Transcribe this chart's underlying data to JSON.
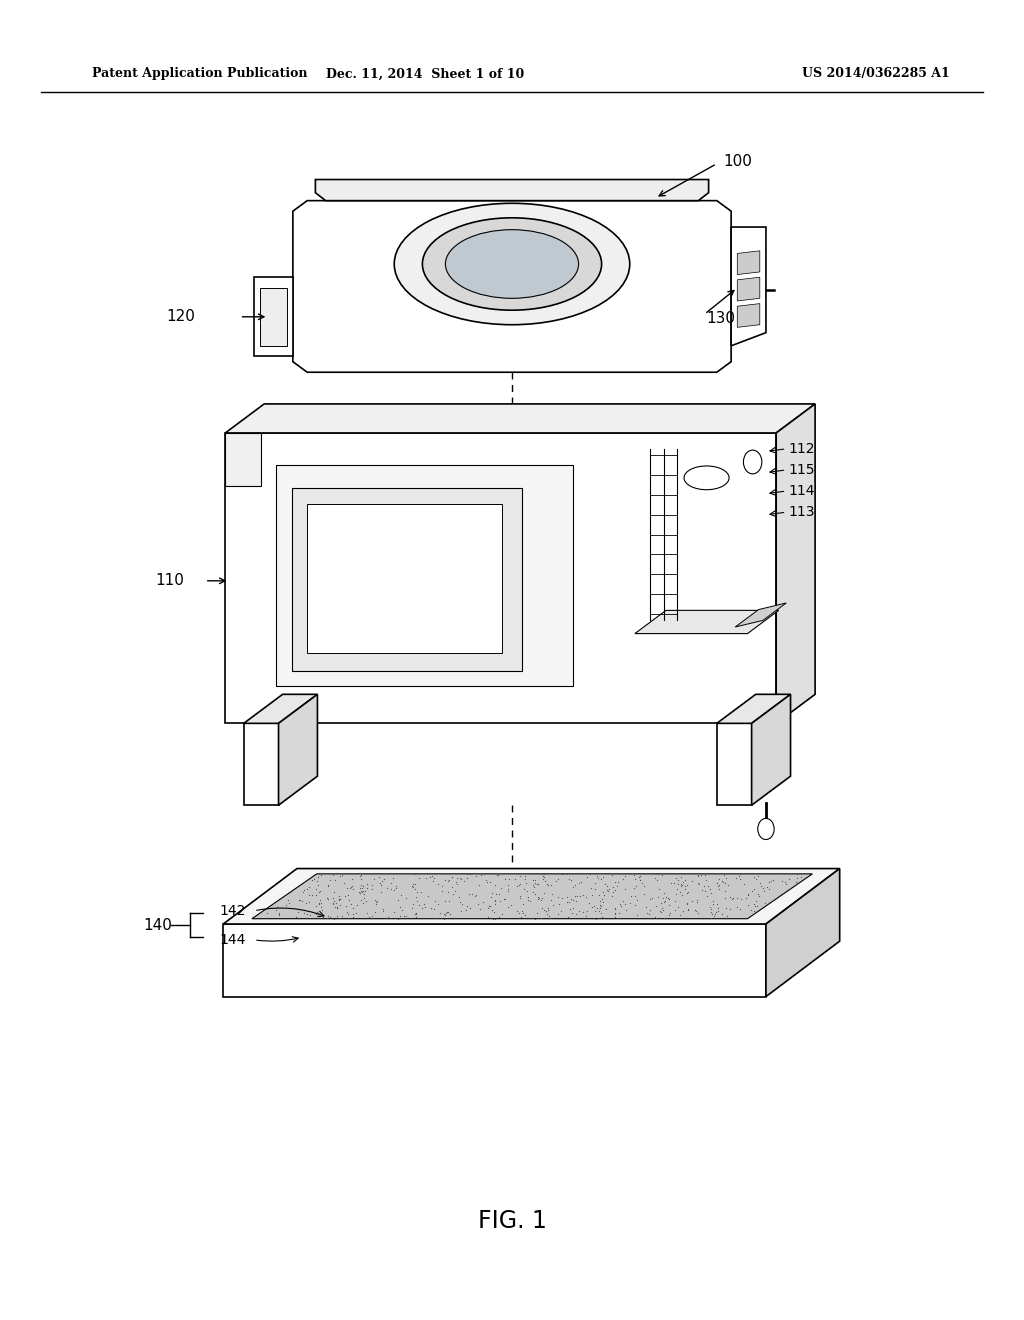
{
  "background_color": "#ffffff",
  "header_left": "Patent Application Publication",
  "header_center": "Dec. 11, 2014  Sheet 1 of 10",
  "header_right": "US 2014/0362285 A1",
  "figure_label": "FIG. 1",
  "label_fontsize": 11,
  "header_fontsize": 9
}
